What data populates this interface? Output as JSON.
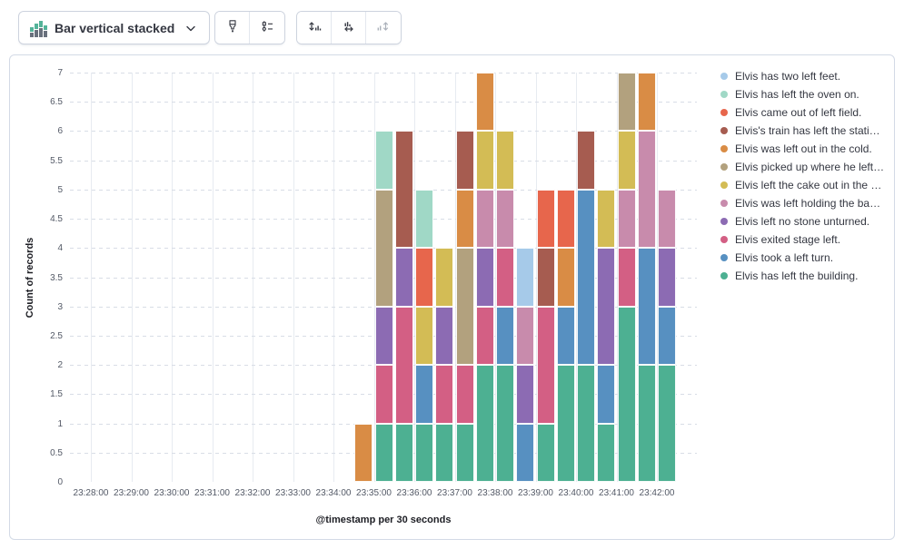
{
  "toolbar": {
    "chart_type_label": "Bar vertical stacked",
    "buttons": {
      "visual_options": "visual-options",
      "legend_settings": "legend-settings",
      "left_axis": "left-axis",
      "bottom_axis": "bottom-axis",
      "right_axis": "right-axis"
    },
    "icon_colors": {
      "mini_chart_green": "#54b399",
      "mini_chart_gray": "#69707d"
    }
  },
  "chart_data": {
    "type": "bar",
    "stacked": true,
    "xlabel": "@timestamp per 30 seconds",
    "ylabel": "Count of records",
    "ylim": [
      0,
      7
    ],
    "y_tick_step": 0.5,
    "y_tick_labels": [
      "0",
      "0.5",
      "1",
      "1.5",
      "2",
      "2.5",
      "3",
      "3.5",
      "4",
      "4.5",
      "5",
      "5.5",
      "6",
      "6.5",
      "7"
    ],
    "x_tick_labels": [
      "23:28:00",
      "23:29:00",
      "23:30:00",
      "23:31:00",
      "23:32:00",
      "23:33:00",
      "23:34:00",
      "23:35:00",
      "23:36:00",
      "23:37:00",
      "23:38:00",
      "23:39:00",
      "23:40:00",
      "23:41:00",
      "23:42:00"
    ],
    "x_axis_start": "23:28:00",
    "categories": [
      "23:34:30",
      "23:35:00",
      "23:35:30",
      "23:36:00",
      "23:36:30",
      "23:37:00",
      "23:37:30",
      "23:38:00",
      "23:38:30",
      "23:39:00",
      "23:39:30",
      "23:40:00",
      "23:40:30",
      "23:41:00",
      "23:41:30",
      "23:42:00"
    ],
    "grid": {
      "horizontal": "dashed",
      "vertical": "solid"
    },
    "legend_position": "right",
    "stacking_note": "stack order bottom-to-top is reverse of series list order",
    "series": [
      {
        "name": "Elvis has two left feet.",
        "color": "#a6cae9",
        "values": [
          0,
          0,
          0,
          0,
          0,
          0,
          0,
          0,
          1,
          0,
          0,
          0,
          0,
          0,
          0,
          0
        ]
      },
      {
        "name": "Elvis has left the oven on.",
        "color": "#a0d8c6",
        "values": [
          0,
          1,
          0,
          1,
          0,
          0,
          0,
          0,
          0,
          0,
          0,
          0,
          0,
          0,
          0,
          0
        ]
      },
      {
        "name": "Elvis came out of left field.",
        "color": "#e7664c",
        "values": [
          0,
          0,
          0,
          1,
          0,
          0,
          0,
          0,
          0,
          1,
          1,
          0,
          0,
          0,
          0,
          0
        ]
      },
      {
        "name": "Elvis's train has left the stati…",
        "color": "#a65c50",
        "values": [
          0,
          0,
          2,
          0,
          0,
          1,
          0,
          0,
          0,
          1,
          0,
          1,
          0,
          0,
          0,
          0
        ]
      },
      {
        "name": "Elvis was left out in the cold.",
        "color": "#d98c45",
        "values": [
          1,
          0,
          0,
          0,
          0,
          1,
          1,
          0,
          0,
          0,
          1,
          0,
          0,
          0,
          1,
          0
        ]
      },
      {
        "name": "Elvis picked up where he left…",
        "color": "#b2a17e",
        "values": [
          0,
          2,
          0,
          0,
          0,
          2,
          0,
          0,
          0,
          0,
          0,
          0,
          0,
          1,
          0,
          0
        ]
      },
      {
        "name": "Elvis left the cake out in the …",
        "color": "#d3bc55",
        "values": [
          0,
          0,
          0,
          1,
          1,
          0,
          1,
          1,
          0,
          0,
          0,
          0,
          1,
          1,
          0,
          0
        ]
      },
      {
        "name": "Elvis was left holding the ba…",
        "color": "#c88bac",
        "values": [
          0,
          0,
          0,
          0,
          0,
          0,
          1,
          1,
          1,
          0,
          0,
          0,
          0,
          1,
          2,
          1
        ]
      },
      {
        "name": "Elvis left no stone unturned.",
        "color": "#8c6bb3",
        "values": [
          0,
          1,
          1,
          0,
          1,
          0,
          1,
          0,
          1,
          0,
          0,
          0,
          2,
          0,
          0,
          1
        ]
      },
      {
        "name": "Elvis exited stage left.",
        "color": "#d35f84",
        "values": [
          0,
          1,
          2,
          0,
          1,
          1,
          1,
          1,
          0,
          2,
          0,
          0,
          0,
          1,
          0,
          0
        ]
      },
      {
        "name": "Elvis took a left turn.",
        "color": "#5790c1",
        "values": [
          0,
          0,
          0,
          1,
          0,
          0,
          0,
          1,
          1,
          0,
          1,
          3,
          1,
          0,
          2,
          1
        ]
      },
      {
        "name": "Elvis has left the building.",
        "color": "#4db092",
        "values": [
          0,
          1,
          1,
          1,
          1,
          1,
          2,
          2,
          0,
          1,
          2,
          2,
          1,
          3,
          2,
          2
        ]
      }
    ]
  }
}
